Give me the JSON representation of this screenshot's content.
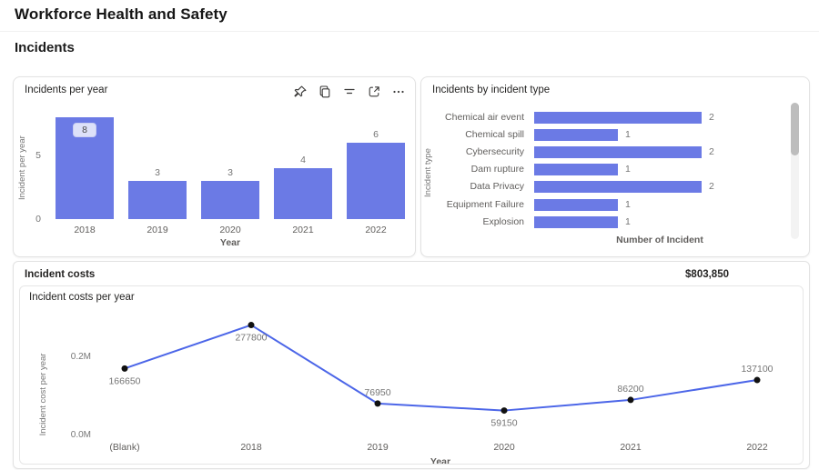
{
  "page": {
    "title": "Workforce Health and Safety",
    "section_title": "Incidents"
  },
  "colors": {
    "bar": "#6B7AE5",
    "line": "#4C66E8",
    "marker": "#111111"
  },
  "visual_toolbar": {
    "icons": [
      "pin",
      "copy",
      "filter",
      "focus-mode",
      "more-options"
    ]
  },
  "cost_summary": {
    "title": "Incident costs",
    "total": "$803,850"
  },
  "chart_data": [
    {
      "id": "incidents-per-year",
      "type": "bar",
      "title": "Incidents per year",
      "categories": [
        "2018",
        "2019",
        "2020",
        "2021",
        "2022"
      ],
      "values": [
        8,
        3,
        3,
        4,
        6
      ],
      "xlabel": "Year",
      "ylabel": "Incident per year",
      "ylim": [
        0,
        8
      ],
      "yticks": [
        0,
        5
      ],
      "grid": false,
      "legend": "none"
    },
    {
      "id": "incidents-by-incident-type",
      "type": "bar",
      "orientation": "horizontal",
      "title": "Incidents by incident type",
      "categories": [
        "Chemical air event",
        "Chemical spill",
        "Cybersecurity",
        "Dam rupture",
        "Data Privacy",
        "Equipment Failure",
        "Explosion"
      ],
      "values": [
        2,
        1,
        2,
        1,
        2,
        1,
        1
      ],
      "xlabel": "Number of Incident",
      "ylabel": "Incident type",
      "xlim": [
        0,
        3
      ],
      "grid": false,
      "legend": "none",
      "scrolled": true
    },
    {
      "id": "incident-costs-per-year",
      "type": "line",
      "title": "Incident costs per year",
      "categories": [
        "(Blank)",
        "2018",
        "2019",
        "2020",
        "2021",
        "2022"
      ],
      "values": [
        166650,
        277800,
        76950,
        59150,
        86200,
        137100
      ],
      "data_labels": [
        "166650",
        "277800",
        "76950",
        "59150",
        "86200",
        "137100"
      ],
      "label_positions": [
        "below",
        "below",
        "above",
        "below",
        "above",
        "above"
      ],
      "xlabel": "Year",
      "ylabel": "Incident cost per year",
      "ylim": [
        0,
        280000
      ],
      "yticks": [
        {
          "value": 0,
          "label": "0.0M"
        },
        {
          "value": 200000,
          "label": "0.2M"
        }
      ],
      "grid": false,
      "legend": "none"
    }
  ]
}
